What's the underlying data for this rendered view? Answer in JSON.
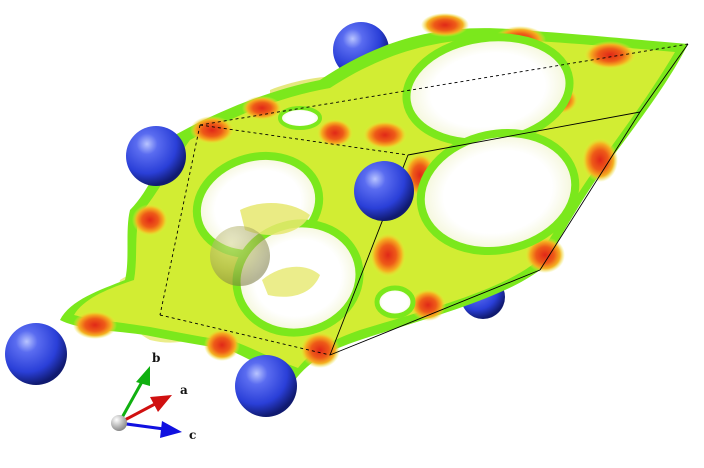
{
  "axes": {
    "a": {
      "label": "a",
      "color": "#d01010"
    },
    "b": {
      "label": "b",
      "color": "#10b010"
    },
    "c": {
      "label": "c",
      "color": "#1010e0"
    }
  },
  "colors": {
    "surface_green": "#7be81c",
    "surface_yellow": "#e8ee3a",
    "surface_orange": "#f28a16",
    "surface_red": "#e2321a",
    "interior_yellow": "#e6e86e",
    "atom_blue": "#2a3fd8",
    "cell_edge": "#000000"
  }
}
